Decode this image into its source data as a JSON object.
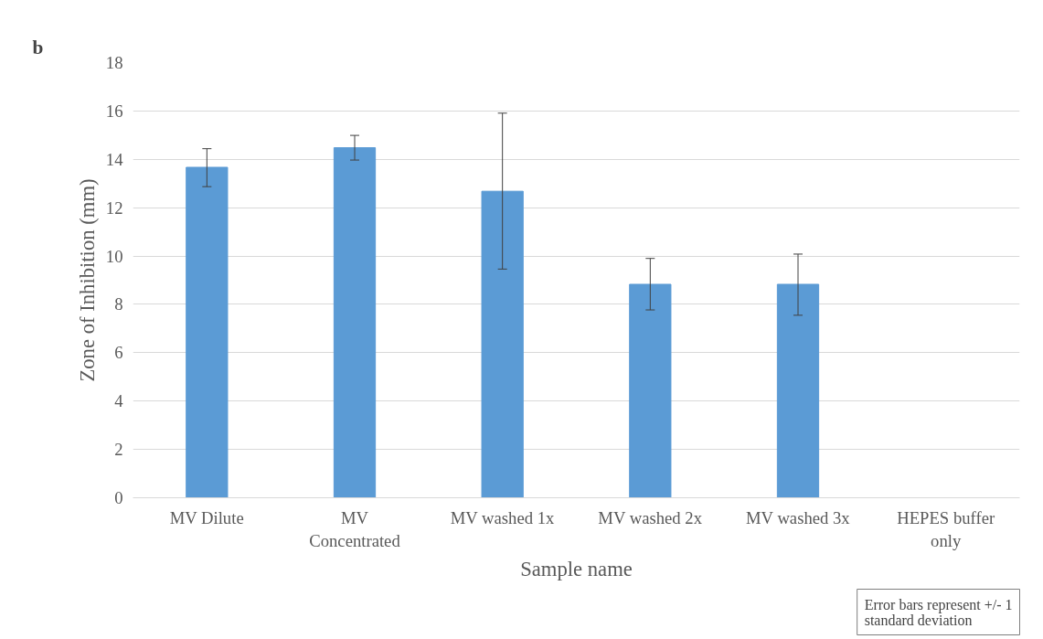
{
  "chart_data": {
    "type": "bar",
    "title": "b",
    "xlabel": "Sample name",
    "ylabel": "Zone of Inhibition (mm)",
    "categories": [
      "MV Dilute",
      "MV\nConcentrated",
      "MV washed 1x",
      "MV washed 2x",
      "MV washed 3x",
      "HEPES buffer\nonly"
    ],
    "values": [
      13.67,
      14.48,
      12.68,
      8.83,
      8.83,
      0
    ],
    "errors": [
      [
        12.87,
        14.44
      ],
      [
        13.97,
        14.99
      ],
      [
        9.46,
        15.91
      ],
      [
        7.77,
        9.9
      ],
      [
        7.55,
        10.08
      ],
      null
    ],
    "color": "#5b9bd5",
    "ylim": [
      0,
      18
    ],
    "yticks": [
      0,
      2,
      4,
      6,
      8,
      10,
      12,
      14,
      16,
      18
    ],
    "grid": "y",
    "annotations": [
      "Error bars represent +/- 1\nstandard deviation"
    ]
  }
}
